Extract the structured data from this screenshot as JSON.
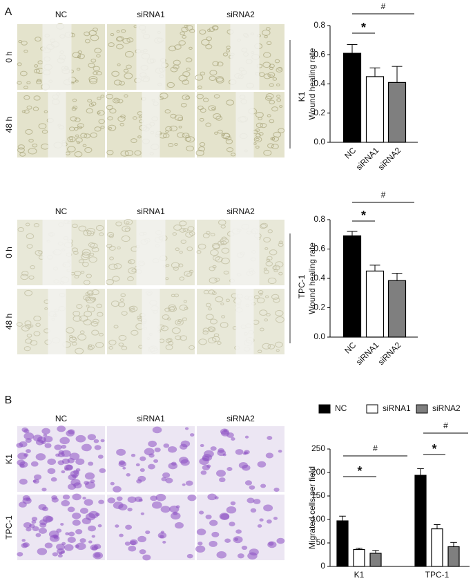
{
  "panels": [
    {
      "label": "A",
      "columns": [
        "NC",
        "siRNA1",
        "siRNA2"
      ],
      "rows": [
        "0 h",
        "48 h"
      ],
      "group": "K1"
    },
    {
      "columns": [
        "NC",
        "siRNA1",
        "siRNA2"
      ],
      "rows": [
        "0 h",
        "48 h"
      ],
      "group": "TPC-1"
    },
    {
      "label": "B",
      "columns": [
        "NC",
        "siRNA1",
        "siRNA2"
      ],
      "rows": [
        "K1",
        "TPC-1"
      ]
    }
  ],
  "chart_data": [
    {
      "type": "bar",
      "ylabel": "Wound healing rate",
      "categories": [
        "NC",
        "siRNA1",
        "siRNA2"
      ],
      "values": [
        0.61,
        0.45,
        0.41
      ],
      "errors": [
        0.06,
        0.06,
        0.11
      ],
      "colors": [
        "#000000",
        "#ffffff",
        "#7f7f7f"
      ],
      "ylim": [
        0,
        0.8
      ],
      "yticks": [
        {
          "value": 0,
          "label": "0.0"
        },
        0.2,
        0.4,
        0.6,
        0.8
      ],
      "annotations": [
        "#",
        "*"
      ]
    },
    {
      "type": "bar",
      "ylabel": "Wound healing rate",
      "categories": [
        "NC",
        "siRNA1",
        "siRNA2"
      ],
      "values": [
        0.69,
        0.45,
        0.385
      ],
      "errors": [
        0.03,
        0.04,
        0.05
      ],
      "colors": [
        "#000000",
        "#ffffff",
        "#7f7f7f"
      ],
      "ylim": [
        0,
        0.8
      ],
      "yticks": [
        {
          "value": 0,
          "label": "0.0"
        },
        0.2,
        0.4,
        0.6,
        0.8
      ],
      "annotations": [
        "#",
        "*"
      ]
    },
    {
      "type": "grouped_bar",
      "ylabel": "Migrated cells per field",
      "categories": [
        "K1",
        "TPC-1"
      ],
      "series": [
        {
          "name": "NC",
          "color": "#000000",
          "values": [
            97,
            194
          ],
          "errors": [
            10,
            14
          ]
        },
        {
          "name": "siRNA1",
          "color": "#ffffff",
          "values": [
            36,
            80
          ],
          "errors": [
            3,
            9
          ]
        },
        {
          "name": "siRNA2",
          "color": "#7f7f7f",
          "values": [
            28,
            42
          ],
          "errors": [
            6,
            9
          ]
        }
      ],
      "ylim": [
        0,
        250
      ],
      "yticks": [
        0,
        50,
        100,
        150,
        200,
        250
      ],
      "legend": "top",
      "annotations": [
        "#",
        "*",
        "#",
        "*"
      ]
    }
  ]
}
